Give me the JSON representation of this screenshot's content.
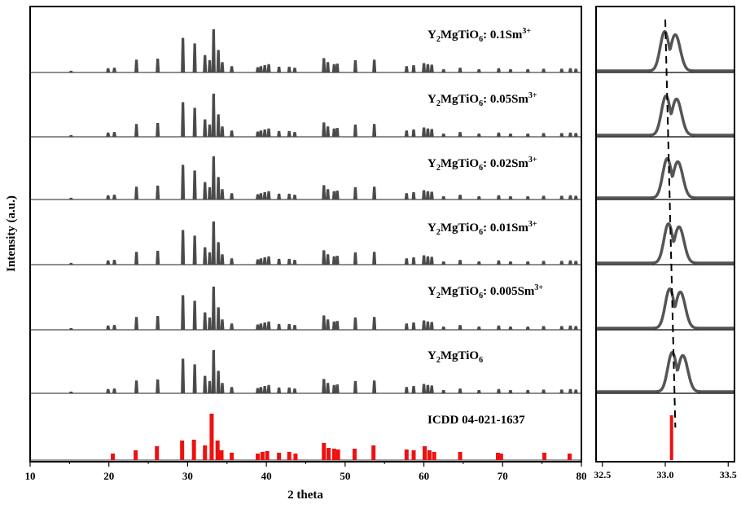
{
  "chart_data": [
    {
      "type": "line",
      "title": "",
      "xlabel": "2 theta",
      "ylabel": "Intensity (a.u.)",
      "xlim": [
        10,
        80
      ],
      "xticks": [
        "10",
        "20",
        "30",
        "40",
        "50",
        "60",
        "70",
        "80"
      ],
      "grid": false,
      "colors": {
        "pattern": "#4a4a4a",
        "reference": "#ee1111",
        "axes": "#000000"
      },
      "series": [
        {
          "name": "Y2MgTiO6: 0.1Sm3+",
          "label_main": "Y",
          "label_parts": [
            "2",
            "MgTiO",
            "6",
            ": 0.1Sm",
            "3+"
          ]
        },
        {
          "name": "Y2MgTiO6: 0.05Sm3+",
          "label_main": "Y",
          "label_parts": [
            "2",
            "MgTiO",
            "6",
            ": 0.05Sm",
            "3+"
          ]
        },
        {
          "name": "Y2MgTiO6: 0.02Sm3+",
          "label_main": "Y",
          "label_parts": [
            "2",
            "MgTiO",
            "6",
            ": 0.02Sm",
            "3+"
          ]
        },
        {
          "name": "Y2MgTiO6: 0.01Sm3+",
          "label_main": "Y",
          "label_parts": [
            "2",
            "MgTiO",
            "6",
            ": 0.01Sm",
            "3+"
          ]
        },
        {
          "name": "Y2MgTiO6: 0.005Sm3+",
          "label_main": "Y",
          "label_parts": [
            "2",
            "MgTiO",
            "6",
            ": 0.005Sm",
            "3+"
          ]
        },
        {
          "name": "Y2MgTiO6",
          "label_main": "Y",
          "label_parts": [
            "2",
            "MgTiO",
            "6",
            "",
            ""
          ]
        }
      ],
      "reference": {
        "name": "ICDD 04-021-1637",
        "peaks": [
          {
            "x": 20.5,
            "y": 8
          },
          {
            "x": 23.4,
            "y": 12
          },
          {
            "x": 26.1,
            "y": 17
          },
          {
            "x": 29.3,
            "y": 24
          },
          {
            "x": 30.8,
            "y": 25
          },
          {
            "x": 32.2,
            "y": 18
          },
          {
            "x": 33.05,
            "y": 57
          },
          {
            "x": 33.8,
            "y": 24
          },
          {
            "x": 34.3,
            "y": 12
          },
          {
            "x": 35.6,
            "y": 9
          },
          {
            "x": 38.9,
            "y": 8
          },
          {
            "x": 39.5,
            "y": 10
          },
          {
            "x": 40.1,
            "y": 11
          },
          {
            "x": 41.6,
            "y": 9
          },
          {
            "x": 42.9,
            "y": 10
          },
          {
            "x": 43.7,
            "y": 8
          },
          {
            "x": 47.3,
            "y": 21
          },
          {
            "x": 47.9,
            "y": 15
          },
          {
            "x": 48.6,
            "y": 14
          },
          {
            "x": 49.1,
            "y": 13
          },
          {
            "x": 51.2,
            "y": 14
          },
          {
            "x": 53.6,
            "y": 18
          },
          {
            "x": 57.8,
            "y": 13
          },
          {
            "x": 58.7,
            "y": 12
          },
          {
            "x": 60.1,
            "y": 17
          },
          {
            "x": 60.7,
            "y": 12
          },
          {
            "x": 61.3,
            "y": 10
          },
          {
            "x": 64.6,
            "y": 10
          },
          {
            "x": 69.4,
            "y": 9
          },
          {
            "x": 69.8,
            "y": 8
          },
          {
            "x": 75.3,
            "y": 9
          },
          {
            "x": 78.5,
            "y": 8
          }
        ]
      },
      "peaks_observed": [
        {
          "x": 15.2,
          "y": 3
        },
        {
          "x": 19.9,
          "y": 8
        },
        {
          "x": 20.7,
          "y": 9
        },
        {
          "x": 23.5,
          "y": 25
        },
        {
          "x": 26.2,
          "y": 27
        },
        {
          "x": 29.4,
          "y": 68
        },
        {
          "x": 30.9,
          "y": 57
        },
        {
          "x": 32.2,
          "y": 34
        },
        {
          "x": 32.8,
          "y": 24
        },
        {
          "x": 33.3,
          "y": 85
        },
        {
          "x": 33.9,
          "y": 44
        },
        {
          "x": 34.4,
          "y": 20
        },
        {
          "x": 35.6,
          "y": 12
        },
        {
          "x": 38.9,
          "y": 10
        },
        {
          "x": 39.3,
          "y": 12
        },
        {
          "x": 39.8,
          "y": 14
        },
        {
          "x": 40.3,
          "y": 16
        },
        {
          "x": 41.6,
          "y": 11
        },
        {
          "x": 42.9,
          "y": 11
        },
        {
          "x": 43.6,
          "y": 9
        },
        {
          "x": 47.3,
          "y": 28
        },
        {
          "x": 47.8,
          "y": 20
        },
        {
          "x": 48.6,
          "y": 16
        },
        {
          "x": 49.0,
          "y": 17
        },
        {
          "x": 51.3,
          "y": 24
        },
        {
          "x": 53.7,
          "y": 25
        },
        {
          "x": 57.8,
          "y": 12
        },
        {
          "x": 58.7,
          "y": 14
        },
        {
          "x": 60.0,
          "y": 18
        },
        {
          "x": 60.5,
          "y": 16
        },
        {
          "x": 61.0,
          "y": 15
        },
        {
          "x": 62.5,
          "y": 6
        },
        {
          "x": 64.6,
          "y": 9
        },
        {
          "x": 67.0,
          "y": 6
        },
        {
          "x": 69.5,
          "y": 8
        },
        {
          "x": 71.0,
          "y": 6
        },
        {
          "x": 73.2,
          "y": 6
        },
        {
          "x": 75.2,
          "y": 7
        },
        {
          "x": 77.5,
          "y": 7
        },
        {
          "x": 78.6,
          "y": 8
        },
        {
          "x": 79.3,
          "y": 7
        }
      ]
    },
    {
      "type": "line",
      "title": "",
      "xlim": [
        32.45,
        33.55
      ],
      "xticks": [
        "32.5",
        "33.0",
        "33.5"
      ],
      "xtick_values": [
        32.5,
        33.0,
        33.5
      ],
      "grid": false,
      "zoom_peak_centers": [
        33.01,
        33.02,
        33.03,
        33.04,
        33.05,
        33.07
      ],
      "reference_line_x": 33.05,
      "shift_line": {
        "style": "dashed",
        "from_x": 33.0,
        "to_x": 33.08
      }
    }
  ]
}
